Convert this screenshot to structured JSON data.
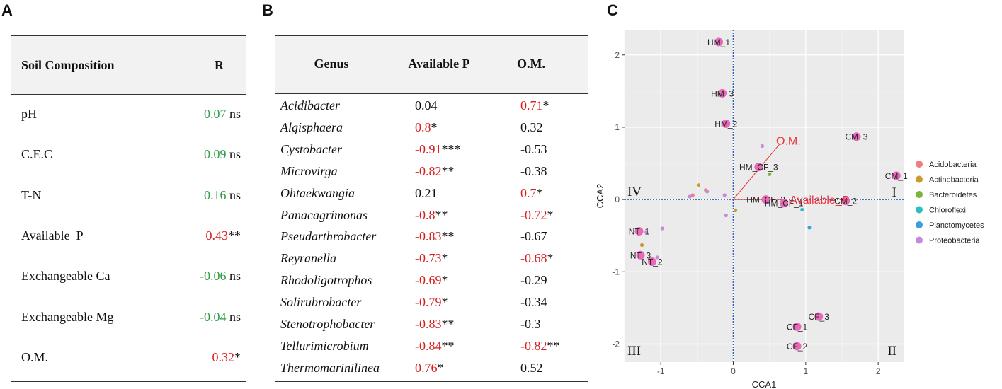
{
  "panel_labels": {
    "a": "A",
    "b": "B",
    "c": "C"
  },
  "table_a": {
    "headers": {
      "composition": "Soil Composition",
      "r": "R"
    },
    "rows": [
      {
        "name": "pH",
        "value": "0.07",
        "sig": " ns",
        "color": "#2e9e46"
      },
      {
        "name": "C.E.C",
        "value": "0.09",
        "sig": " ns",
        "color": "#2e9e46"
      },
      {
        "name": "T-N",
        "value": "0.16",
        "sig": " ns",
        "color": "#2e9e46"
      },
      {
        "name": "Available  P",
        "value": "0.43",
        "sig": "**",
        "color": "#d62020"
      },
      {
        "name": "Exchangeable Ca",
        "value": "-0.06",
        "sig": " ns",
        "color": "#2e9e46"
      },
      {
        "name": "Exchangeable Mg",
        "value": "-0.04",
        "sig": " ns",
        "color": "#2e9e46"
      },
      {
        "name": "O.M.",
        "value": "0.32",
        "sig": "*",
        "color": "#d62020"
      }
    ]
  },
  "table_b": {
    "headers": {
      "genus": "Genus",
      "p": "Available P",
      "om": "O.M."
    },
    "rows": [
      {
        "genus": "Acidibacter",
        "p": "0.04",
        "p_sig": "",
        "p_color": "#111111",
        "om": "0.71",
        "om_sig": "*",
        "om_color": "#d62020"
      },
      {
        "genus": "Algisphaera",
        "p": "0.8",
        "p_sig": "*",
        "p_color": "#d62020",
        "om": "0.32",
        "om_sig": "",
        "om_color": "#111111"
      },
      {
        "genus": "Cystobacter",
        "p": "-0.91",
        "p_sig": "***",
        "p_color": "#d62020",
        "om": "-0.53",
        "om_sig": "",
        "om_color": "#111111"
      },
      {
        "genus": "Microvirga",
        "p": "-0.82",
        "p_sig": "**",
        "p_color": "#d62020",
        "om": "-0.38",
        "om_sig": "",
        "om_color": "#111111"
      },
      {
        "genus": "Ohtaekwangia",
        "p": "0.21",
        "p_sig": "",
        "p_color": "#111111",
        "om": "0.7",
        "om_sig": "*",
        "om_color": "#d62020"
      },
      {
        "genus": "Panacagrimonas",
        "p": "-0.8",
        "p_sig": "**",
        "p_color": "#d62020",
        "om": "-0.72",
        "om_sig": "*",
        "om_color": "#d62020"
      },
      {
        "genus": "Pseudarthrobacter",
        "p": "-0.83",
        "p_sig": "**",
        "p_color": "#d62020",
        "om": "-0.67",
        "om_sig": "",
        "om_color": "#111111"
      },
      {
        "genus": "Reyranella",
        "p": "-0.73",
        "p_sig": "*",
        "p_color": "#d62020",
        "om": "-0.68",
        "om_sig": "*",
        "om_color": "#d62020"
      },
      {
        "genus": "Rhodoligotrophos",
        "p": "-0.69",
        "p_sig": "*",
        "p_color": "#d62020",
        "om": "-0.29",
        "om_sig": "",
        "om_color": "#111111"
      },
      {
        "genus": "Solirubrobacter",
        "p": "-0.79",
        "p_sig": "*",
        "p_color": "#d62020",
        "om": "-0.34",
        "om_sig": "",
        "om_color": "#111111"
      },
      {
        "genus": "Stenotrophobacter",
        "p": "-0.83",
        "p_sig": "**",
        "p_color": "#d62020",
        "om": "-0.3",
        "om_sig": "",
        "om_color": "#111111"
      },
      {
        "genus": "Tellurimicrobium",
        "p": "-0.84",
        "p_sig": "**",
        "p_color": "#d62020",
        "om": "-0.82",
        "om_sig": "**",
        "om_color": "#d62020"
      },
      {
        "genus": "Thermomarinilinea",
        "p": "0.76",
        "p_sig": "*",
        "p_color": "#d62020",
        "om": "0.52",
        "om_sig": "",
        "om_color": "#111111"
      }
    ]
  },
  "chart_data": {
    "type": "scatter",
    "title": "",
    "xlabel": "CCA1",
    "ylabel": "CCA2",
    "xlim": [
      -1.5,
      2.35
    ],
    "ylim": [
      -2.25,
      2.35
    ],
    "xticks": [
      -1,
      0,
      1,
      2
    ],
    "yticks": [
      -2,
      -1,
      0,
      1,
      2
    ],
    "grid": true,
    "quadrant_labels": [
      {
        "label": "I",
        "corner": "right-middle"
      },
      {
        "label": "II",
        "corner": "bottom-right"
      },
      {
        "label": "III",
        "corner": "bottom-left"
      },
      {
        "label": "IV",
        "corner": "left-middle"
      }
    ],
    "samples": [
      {
        "label": "HM_1",
        "x": -0.2,
        "y": 2.18
      },
      {
        "label": "HM_3",
        "x": -0.15,
        "y": 1.47
      },
      {
        "label": "HM_2",
        "x": -0.1,
        "y": 1.05
      },
      {
        "label": "HM_CF_3",
        "x": 0.35,
        "y": 0.45
      },
      {
        "label": "HM_CF_2",
        "x": 0.45,
        "y": 0.0
      },
      {
        "label": "HM_CF_1",
        "x": 0.7,
        "y": -0.05
      },
      {
        "label": "CM_3",
        "x": 1.7,
        "y": 0.87
      },
      {
        "label": "CM_1",
        "x": 2.25,
        "y": 0.33
      },
      {
        "label": "CM_2",
        "x": 1.55,
        "y": -0.02
      },
      {
        "label": "NT_1",
        "x": -1.3,
        "y": -0.44
      },
      {
        "label": "NT_3",
        "x": -1.28,
        "y": -0.77
      },
      {
        "label": "NT_2",
        "x": -1.12,
        "y": -0.86
      },
      {
        "label": "CF_3",
        "x": 1.18,
        "y": -1.62
      },
      {
        "label": "CF_1",
        "x": 0.88,
        "y": -1.76
      },
      {
        "label": "CF_2",
        "x": 0.88,
        "y": -2.03
      }
    ],
    "sample_color": "#e76ab8",
    "vectors": [
      {
        "label": "O.M.",
        "x": 0.65,
        "y": 0.78
      },
      {
        "label": "Available_P",
        "x": 0.72,
        "y": 0.0
      }
    ],
    "vector_color": "#e8333a",
    "taxa": [
      {
        "phylum": "Acidobacteria",
        "x": -0.38,
        "y": 0.13
      },
      {
        "phylum": "Acidobacteria",
        "x": -0.56,
        "y": 0.06
      },
      {
        "phylum": "Actinobacteria",
        "x": -0.48,
        "y": 0.2
      },
      {
        "phylum": "Actinobacteria",
        "x": -1.26,
        "y": -0.63
      },
      {
        "phylum": "Actinobacteria",
        "x": 0.03,
        "y": -0.15
      },
      {
        "phylum": "Bacteroidetes",
        "x": 0.5,
        "y": 0.35
      },
      {
        "phylum": "Chloroflexi",
        "x": 0.95,
        "y": -0.14
      },
      {
        "phylum": "Planctomycetes",
        "x": 1.05,
        "y": -0.39
      },
      {
        "phylum": "Proteobacteria",
        "x": 0.4,
        "y": 0.74
      },
      {
        "phylum": "Proteobacteria",
        "x": -0.36,
        "y": 0.11
      },
      {
        "phylum": "Proteobacteria",
        "x": -0.6,
        "y": 0.04
      },
      {
        "phylum": "Proteobacteria",
        "x": -0.12,
        "y": 0.06
      },
      {
        "phylum": "Proteobacteria",
        "x": -0.1,
        "y": -0.22
      },
      {
        "phylum": "Proteobacteria",
        "x": -0.98,
        "y": -0.4
      },
      {
        "phylum": "Proteobacteria",
        "x": -1.2,
        "y": -0.45
      },
      {
        "phylum": "Proteobacteria",
        "x": -1.05,
        "y": -0.8
      }
    ],
    "legend": [
      {
        "name": "Acidobacteria",
        "color": "#f07d7d"
      },
      {
        "name": "Actinobacteria",
        "color": "#c99a2e"
      },
      {
        "name": "Bacteroidetes",
        "color": "#7fb33b"
      },
      {
        "name": "Chloroflexi",
        "color": "#2bbfbf"
      },
      {
        "name": "Planctomycetes",
        "color": "#3a9fe0"
      },
      {
        "name": "Proteobacteria",
        "color": "#c58bd9"
      }
    ],
    "legend_position": "right"
  }
}
